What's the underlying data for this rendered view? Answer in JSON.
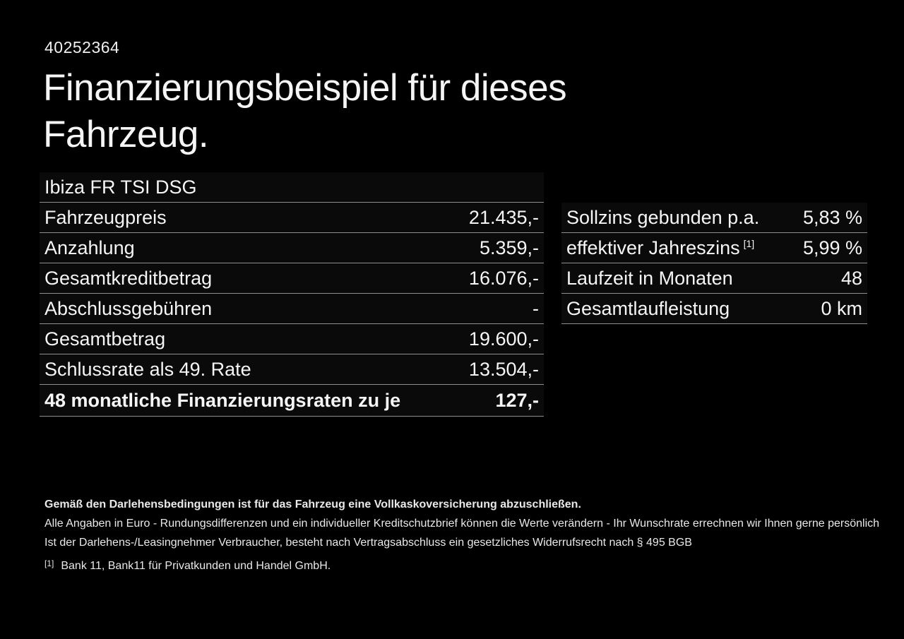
{
  "page": {
    "vehicle_id": "40252364",
    "title_line1": "Finanzierungsbeispiel für dieses",
    "title_line2": "Fahrzeug.",
    "model_name": "Ibiza FR TSI DSG"
  },
  "finance_table": {
    "rows": [
      {
        "label": "Fahrzeugpreis",
        "value": "21.435,-"
      },
      {
        "label": "Anzahlung",
        "value": "5.359,-"
      },
      {
        "label": "Gesamtkreditbetrag",
        "value": "16.076,-"
      },
      {
        "label": "Abschlussgebühren",
        "value": "-"
      },
      {
        "label": "Gesamtbetrag",
        "value": "19.600,-"
      },
      {
        "label": "Schlussrate als 49. Rate",
        "value": "13.504,-"
      },
      {
        "label": "48 monatliche Finanzierungsraten zu je",
        "value": "127,-"
      }
    ]
  },
  "conditions_table": {
    "rows": [
      {
        "label": "Sollzins gebunden p.a.",
        "value": "5,83 %"
      },
      {
        "label": "effektiver Jahreszins",
        "footnote_marker": "[1]",
        "value": "5,99 %"
      },
      {
        "label": "Laufzeit in Monaten",
        "value": "48"
      },
      {
        "label": "Gesamtlaufleistung",
        "value": "0 km"
      }
    ]
  },
  "disclaimer": {
    "bold_line": "Gemäß den Darlehensbedingungen ist für das Fahrzeug eine Vollkaskoversicherung abzuschließen.",
    "line2": "Alle Angaben in Euro - Rundungsdifferenzen und ein individueller Kreditschutzbrief können die Werte verändern - Ihr Wunschrate errechnen wir Ihnen gerne persönlich",
    "line3": "Ist der Darlehens-/Leasingnehmer Verbraucher, besteht nach Vertragsabschluss ein gesetzliches Widerrufsrecht nach § 495 BGB",
    "footnote_marker": "[1]",
    "footnote_text": "Bank 11, Bank11 für Privatkunden und Handel GmbH."
  },
  "colors": {
    "background": "#000000",
    "text": "#f5f5f5",
    "divider": "#8f8f8f"
  }
}
